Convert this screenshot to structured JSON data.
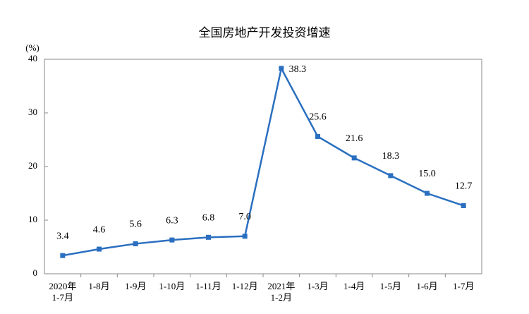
{
  "chart_data": {
    "type": "line",
    "title": "全国房地产开发投资增速",
    "y_label": "(%)",
    "categories": [
      "2020年\n1-7月",
      "1-8月",
      "1-9月",
      "1-10月",
      "1-11月",
      "1-12月",
      "2021年\n1-2月",
      "1-3月",
      "1-4月",
      "1-5月",
      "1-6月",
      "1-7月"
    ],
    "series": [
      {
        "name": "全国房地产开发投资增速",
        "color": "#2a6fc0",
        "values": [
          3.4,
          4.6,
          5.6,
          6.3,
          6.8,
          7.0,
          38.3,
          25.6,
          21.6,
          18.3,
          15.0,
          12.7
        ],
        "value_labels": [
          "3.4",
          "4.6",
          "5.6",
          "6.3",
          "6.8",
          "7.0",
          "38.3",
          "25.6",
          "21.6",
          "18.3",
          "15.0",
          "12.7"
        ]
      }
    ],
    "ylim": [
      0,
      40
    ],
    "yticks": [
      0,
      10,
      20,
      30,
      40
    ],
    "grid": false
  }
}
